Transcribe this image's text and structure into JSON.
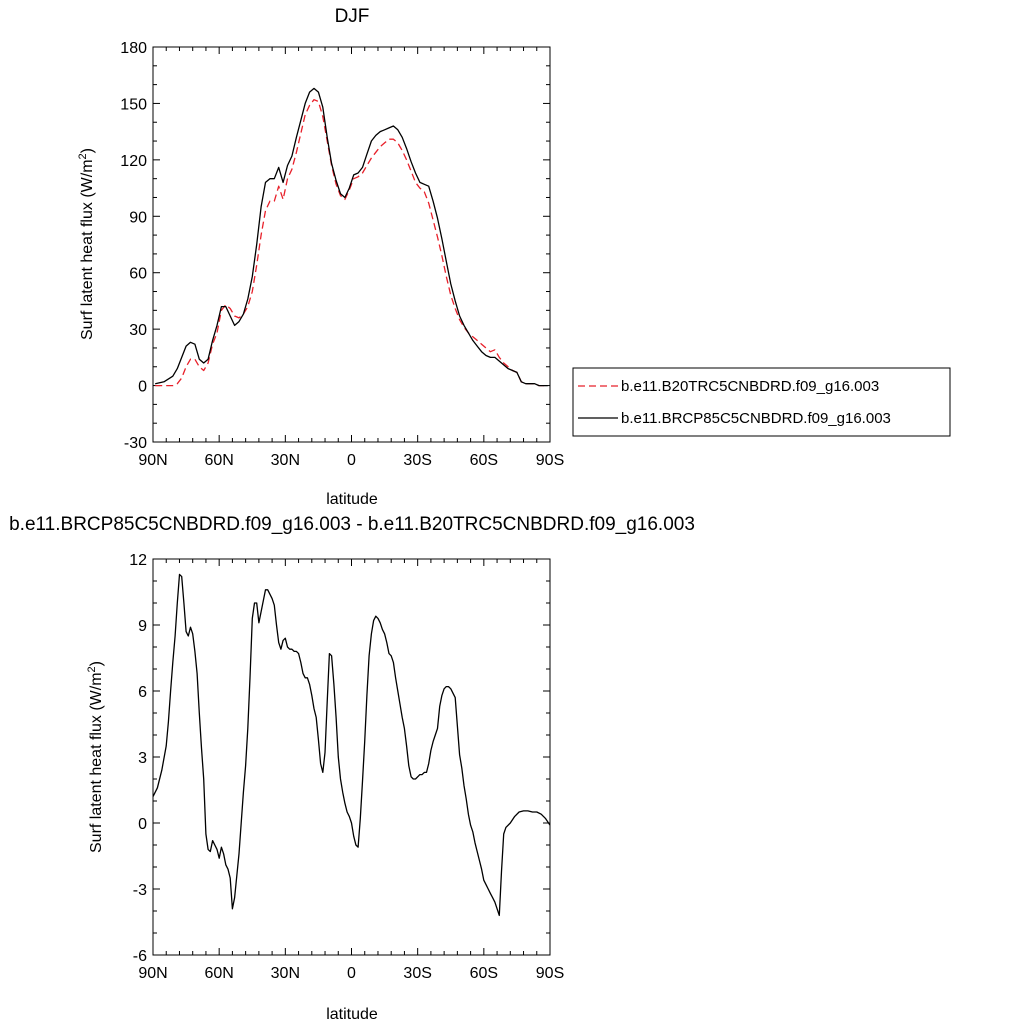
{
  "chart_data": [
    {
      "type": "line",
      "title": "DJF",
      "xlabel": "latitude",
      "ylabel": "Surf latent heat flux (W/m",
      "ylabel_sup": "2",
      "ylabel_close": ")",
      "xlim": [
        90,
        -90
      ],
      "ylim": [
        -30,
        180
      ],
      "x_ticks": [
        90,
        60,
        30,
        0,
        -30,
        -60,
        -90
      ],
      "x_tick_labels": [
        "90N",
        "60N",
        "30N",
        "0",
        "30S",
        "60S",
        "90S"
      ],
      "y_ticks": [
        -30,
        0,
        30,
        60,
        90,
        120,
        150,
        180
      ],
      "y_tick_labels": [
        "-30",
        "0",
        "30",
        "60",
        "90",
        "120",
        "150",
        "180"
      ],
      "legend_position": "right",
      "series": [
        {
          "name": "b.e11.B20TRC5CNBDRD.f09_g16.003",
          "color": "#e8202a",
          "dash": "dashed",
          "x": [
            89,
            85,
            81,
            79,
            77,
            75,
            73,
            71,
            69,
            67,
            65,
            63,
            61,
            59,
            57,
            55,
            53,
            51,
            49,
            47,
            45,
            43,
            41,
            39,
            37,
            35,
            33,
            31,
            29,
            27,
            25,
            23,
            21,
            19,
            17,
            15,
            13,
            11,
            9,
            7,
            5,
            3,
            1,
            -1,
            -3,
            -5,
            -7,
            -9,
            -11,
            -13,
            -15,
            -17,
            -19,
            -21,
            -23,
            -25,
            -27,
            -29,
            -31,
            -33,
            -35,
            -37,
            -39,
            -41,
            -43,
            -45,
            -47,
            -49,
            -51,
            -53,
            -55,
            -57,
            -59,
            -61,
            -63,
            -65,
            -67,
            -69,
            -71,
            -73,
            -75,
            -77,
            -79,
            -81,
            -83,
            -85,
            -87,
            -89
          ],
          "y": [
            0,
            0,
            0,
            1,
            4,
            10,
            14,
            14,
            10,
            8,
            12,
            22,
            28,
            40,
            43,
            41,
            37,
            36,
            38,
            42,
            50,
            64,
            80,
            93,
            98,
            98,
            106,
            99,
            110,
            115,
            124,
            134,
            144,
            149,
            152,
            151,
            143,
            130,
            117,
            107,
            101,
            99,
            104,
            110,
            111,
            113,
            117,
            121,
            124,
            127,
            129,
            131,
            131,
            129,
            125,
            120,
            114,
            108,
            105,
            103,
            97,
            88,
            79,
            69,
            58,
            48,
            41,
            35,
            31,
            28,
            26,
            24,
            22,
            20,
            18,
            19,
            15,
            12,
            10,
            8,
            7,
            2,
            1,
            1,
            1,
            0,
            0,
            0
          ]
        },
        {
          "name": "b.e11.BRCP85C5CNBDRD.f09_g16.003",
          "color": "#000000",
          "dash": "solid",
          "x": [
            89,
            85,
            81,
            79,
            77,
            75,
            73,
            71,
            69,
            67,
            65,
            63,
            61,
            59,
            57,
            55,
            53,
            51,
            49,
            47,
            45,
            43,
            41,
            39,
            37,
            35,
            33,
            31,
            29,
            27,
            25,
            23,
            21,
            19,
            17,
            15,
            13,
            11,
            9,
            7,
            5,
            3,
            1,
            -1,
            -3,
            -5,
            -7,
            -9,
            -11,
            -13,
            -15,
            -17,
            -19,
            -21,
            -23,
            -25,
            -27,
            -29,
            -31,
            -33,
            -35,
            -37,
            -39,
            -41,
            -43,
            -45,
            -47,
            -49,
            -51,
            -53,
            -55,
            -57,
            -59,
            -61,
            -63,
            -65,
            -67,
            -69,
            -71,
            -73,
            -75,
            -77,
            -79,
            -81,
            -83,
            -85,
            -87,
            -89
          ],
          "y": [
            1,
            2,
            5,
            9,
            15,
            21,
            23,
            22,
            14,
            12,
            14,
            24,
            32,
            42,
            42,
            37,
            32,
            34,
            38,
            46,
            58,
            75,
            95,
            108,
            110,
            110,
            116,
            108,
            117,
            122,
            132,
            141,
            150,
            156,
            158,
            156,
            148,
            132,
            118,
            109,
            102,
            100,
            105,
            112,
            113,
            116,
            123,
            130,
            133,
            135,
            136,
            137,
            138,
            136,
            132,
            126,
            119,
            113,
            108,
            107,
            106,
            98,
            89,
            78,
            66,
            54,
            45,
            37,
            32,
            28,
            24,
            21,
            18,
            16,
            15,
            15,
            13,
            11,
            9,
            8,
            7,
            2,
            1,
            1,
            1,
            0,
            0,
            0
          ]
        }
      ]
    },
    {
      "type": "line",
      "title": "b.e11.BRCP85C5CNBDRD.f09_g16.003 - b.e11.B20TRC5CNBDRD.f09_g16.003",
      "xlabel": "latitude",
      "ylabel": "Surf latent heat flux (W/m",
      "ylabel_sup": "2",
      "ylabel_close": ")",
      "xlim": [
        90,
        -90
      ],
      "ylim": [
        -6,
        12
      ],
      "x_ticks": [
        90,
        60,
        30,
        0,
        -30,
        -60,
        -90
      ],
      "x_tick_labels": [
        "90N",
        "60N",
        "30N",
        "0",
        "30S",
        "60S",
        "90S"
      ],
      "y_ticks": [
        -6,
        -3,
        0,
        3,
        6,
        9,
        12
      ],
      "y_tick_labels": [
        "-6",
        "-3",
        "0",
        "3",
        "6",
        "9",
        "12"
      ],
      "series": [
        {
          "color": "#000000",
          "dash": "solid",
          "x": [
            90,
            88,
            86,
            84,
            83,
            82,
            81,
            80,
            79,
            78,
            77,
            76,
            75,
            74,
            73,
            72,
            71,
            70,
            69,
            68,
            67,
            66,
            65,
            64,
            63,
            62,
            61,
            60,
            59,
            58,
            57,
            56,
            55,
            54,
            53,
            52,
            51,
            50,
            49,
            48,
            47,
            46,
            45,
            44,
            43,
            42,
            41,
            40,
            39,
            38,
            37,
            36,
            35,
            34,
            33,
            32,
            31,
            30,
            29,
            28,
            27,
            26,
            25,
            24,
            23,
            22,
            21,
            20,
            19,
            18,
            17,
            16,
            15,
            14,
            13,
            12,
            11,
            10,
            9,
            8,
            7,
            6,
            5,
            4,
            3,
            2,
            1,
            0,
            -1,
            -2,
            -3,
            -4,
            -5,
            -6,
            -7,
            -8,
            -9,
            -10,
            -11,
            -12,
            -13,
            -14,
            -15,
            -16,
            -17,
            -18,
            -19,
            -20,
            -21,
            -22,
            -23,
            -24,
            -25,
            -26,
            -27,
            -28,
            -29,
            -30,
            -31,
            -32,
            -33,
            -34,
            -35,
            -36,
            -37,
            -38,
            -39,
            -40,
            -41,
            -42,
            -43,
            -44,
            -45,
            -46,
            -47,
            -48,
            -49,
            -50,
            -51,
            -52,
            -53,
            -54,
            -55,
            -56,
            -57,
            -58,
            -59,
            -60,
            -61,
            -62,
            -63,
            -64,
            -65,
            -66,
            -67,
            -68,
            -69,
            -70,
            -72,
            -74,
            -76,
            -78,
            -80,
            -82,
            -84,
            -86,
            -88,
            -90
          ],
          "y": [
            1.2,
            1.6,
            2.4,
            3.5,
            4.6,
            6.0,
            7.3,
            8.5,
            10.0,
            11.3,
            11.2,
            10.0,
            8.7,
            8.5,
            8.9,
            8.6,
            7.8,
            6.8,
            5.0,
            3.4,
            2.0,
            -0.5,
            -1.2,
            -1.3,
            -0.8,
            -1.0,
            -1.2,
            -1.6,
            -1.1,
            -1.4,
            -1.9,
            -2.1,
            -2.5,
            -3.9,
            -3.4,
            -2.4,
            -1.4,
            0.0,
            1.4,
            2.6,
            4.3,
            6.6,
            9.3,
            10.0,
            10.0,
            9.1,
            9.6,
            10.1,
            10.6,
            10.6,
            10.4,
            10.2,
            9.9,
            9.0,
            8.2,
            7.9,
            8.3,
            8.4,
            8.0,
            7.9,
            7.9,
            7.8,
            7.8,
            7.7,
            7.3,
            6.8,
            6.6,
            6.6,
            6.3,
            5.8,
            5.2,
            4.8,
            3.8,
            2.7,
            2.3,
            3.2,
            5.5,
            7.7,
            7.6,
            6.3,
            4.8,
            3.0,
            2.0,
            1.4,
            0.9,
            0.5,
            0.3,
            0.0,
            -0.6,
            -1.0,
            -1.1,
            0.2,
            1.9,
            3.7,
            5.8,
            7.6,
            8.6,
            9.2,
            9.4,
            9.3,
            9.1,
            8.8,
            8.6,
            8.2,
            7.7,
            7.6,
            7.3,
            6.6,
            6.0,
            5.4,
            4.8,
            4.3,
            3.5,
            2.6,
            2.1,
            2.0,
            2.0,
            2.1,
            2.2,
            2.2,
            2.3,
            2.3,
            2.7,
            3.3,
            3.7,
            4.0,
            4.3,
            5.3,
            5.8,
            6.1,
            6.2,
            6.2,
            6.1,
            5.9,
            5.7,
            4.4,
            3.1,
            2.5,
            1.7,
            1.1,
            0.4,
            -0.1,
            -0.4,
            -0.9,
            -1.3,
            -1.7,
            -2.1,
            -2.6,
            -2.8,
            -3.0,
            -3.2,
            -3.4,
            -3.6,
            -3.9,
            -4.2,
            -2.2,
            -0.5,
            -0.2,
            0.0,
            0.3,
            0.5,
            0.55,
            0.55,
            0.5,
            0.5,
            0.4,
            0.2,
            -0.1
          ]
        }
      ]
    }
  ]
}
